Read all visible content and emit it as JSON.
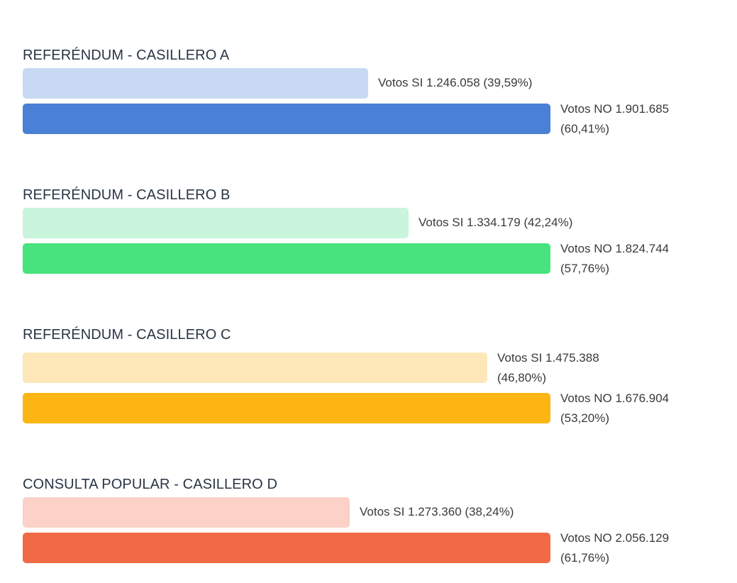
{
  "chart_data": [
    {
      "type": "bar",
      "orientation": "horizontal",
      "title": "REFERÉNDUM - CASILLERO A",
      "categories": [
        "SI",
        "NO"
      ],
      "values": [
        1246058,
        1901685
      ],
      "percentages": [
        39.59,
        60.41
      ],
      "labels": [
        "Votos SI 1.246.058 (39,59%)",
        "Votos NO 1.901.685 (60,41%)"
      ],
      "colors": [
        "#c8daf3",
        "#4a80d5"
      ]
    },
    {
      "type": "bar",
      "orientation": "horizontal",
      "title": "REFERÉNDUM - CASILLERO B",
      "categories": [
        "SI",
        "NO"
      ],
      "values": [
        1334179,
        1824744
      ],
      "percentages": [
        42.24,
        57.76
      ],
      "labels": [
        "Votos SI 1.334.179 (42,24%)",
        "Votos NO 1.824.744 (57,76%)"
      ],
      "colors": [
        "#c8f5db",
        "#48e37e"
      ]
    },
    {
      "type": "bar",
      "orientation": "horizontal",
      "title": "REFERÉNDUM - CASILLERO C",
      "categories": [
        "SI",
        "NO"
      ],
      "values": [
        1475388,
        1676904
      ],
      "percentages": [
        46.8,
        53.2
      ],
      "labels": [
        "Votos SI 1.475.388 (46,80%)",
        "Votos NO 1.676.904 (53,20%)"
      ],
      "colors": [
        "#fde7b9",
        "#fcb513"
      ]
    },
    {
      "type": "bar",
      "orientation": "horizontal",
      "title": "CONSULTA POPULAR - CASILLERO D",
      "categories": [
        "SI",
        "NO"
      ],
      "values": [
        1273360,
        2056129
      ],
      "percentages": [
        38.24,
        61.76
      ],
      "labels": [
        "Votos SI 1.273.360 (38,24%)",
        "Votos NO 2.056.129 (61,76%)"
      ],
      "colors": [
        "#fbd1c8",
        "#f06a46"
      ]
    }
  ]
}
